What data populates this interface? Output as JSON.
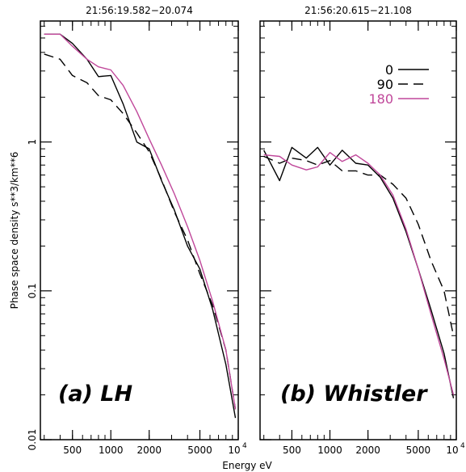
{
  "chart_data": [
    {
      "type": "line",
      "title": "21:56:19.582−20.074",
      "panel_label": "(a) LH",
      "xlabel": "Energy eV",
      "ylabel": "Phase space density s**3/km**6",
      "x_scale": "log",
      "y_scale": "log",
      "xlim": [
        280,
        10000
      ],
      "ylim": [
        0.01,
        6.5
      ],
      "x_ticks": [
        500,
        1000,
        2000,
        5000,
        10000
      ],
      "x_tick_labels": [
        "500",
        "1000",
        "2000",
        "5000",
        "10⁴"
      ],
      "y_ticks": [
        0.01,
        0.1,
        1
      ],
      "y_tick_labels": [
        "0.01",
        "0.1",
        "1"
      ],
      "series": [
        {
          "name": "0",
          "color": "#000000",
          "dash": "solid",
          "x": [
            300,
            400,
            500,
            650,
            800,
            1000,
            1250,
            1600,
            2000,
            2500,
            3150,
            4000,
            5000,
            6300,
            8000,
            9500
          ],
          "y": [
            5.3,
            5.3,
            4.6,
            3.6,
            2.75,
            2.8,
            1.8,
            1.0,
            0.9,
            0.55,
            0.35,
            0.2,
            0.14,
            0.075,
            0.032,
            0.014
          ]
        },
        {
          "name": "90",
          "color": "#000000",
          "dash": "dashed",
          "x": [
            300,
            400,
            500,
            650,
            800,
            1000,
            1250,
            1600,
            2000,
            2500,
            3150,
            4000,
            5000,
            6300,
            8000,
            9500
          ],
          "y": [
            3.9,
            3.6,
            2.8,
            2.5,
            2.05,
            1.92,
            1.55,
            1.15,
            0.86,
            0.56,
            0.34,
            0.22,
            0.13,
            0.08,
            0.04,
            0.016
          ]
        },
        {
          "name": "180",
          "color": "#c0479a",
          "dash": "solid",
          "x": [
            300,
            400,
            500,
            650,
            800,
            1000,
            1250,
            1600,
            2000,
            2500,
            3150,
            4000,
            5000,
            6300,
            8000,
            9500
          ],
          "y": [
            5.3,
            5.3,
            4.4,
            3.6,
            3.2,
            3.05,
            2.4,
            1.6,
            1.05,
            0.7,
            0.45,
            0.27,
            0.16,
            0.085,
            0.04,
            0.016
          ]
        }
      ]
    },
    {
      "type": "line",
      "title": "21:56:20.615−21.108",
      "panel_label": "(b) Whistler",
      "xlabel": "Energy eV",
      "x_scale": "log",
      "y_scale": "log",
      "xlim": [
        280,
        10000
      ],
      "ylim": [
        0.01,
        6.5
      ],
      "x_ticks": [
        500,
        1000,
        2000,
        5000,
        10000
      ],
      "x_tick_labels": [
        "500",
        "1000",
        "2000",
        "5000",
        "10⁴"
      ],
      "legend_position": "top-right",
      "legend_entries": [
        "0",
        "90",
        "180"
      ],
      "series": [
        {
          "name": "0",
          "color": "#000000",
          "dash": "solid",
          "x": [
            300,
            400,
            500,
            650,
            800,
            1000,
            1250,
            1600,
            2000,
            2500,
            3150,
            4000,
            5000,
            6300,
            8000,
            9500
          ],
          "y": [
            0.88,
            0.55,
            0.92,
            0.78,
            0.92,
            0.7,
            0.88,
            0.72,
            0.7,
            0.58,
            0.42,
            0.25,
            0.14,
            0.075,
            0.038,
            0.019
          ]
        },
        {
          "name": "90",
          "color": "#000000",
          "dash": "dashed",
          "x": [
            300,
            400,
            500,
            650,
            800,
            1000,
            1250,
            1600,
            2000,
            2500,
            3150,
            4000,
            5000,
            6300,
            8000,
            9500
          ],
          "y": [
            0.8,
            0.72,
            0.78,
            0.75,
            0.7,
            0.75,
            0.64,
            0.64,
            0.6,
            0.6,
            0.52,
            0.42,
            0.28,
            0.16,
            0.1,
            0.05
          ]
        },
        {
          "name": "180",
          "color": "#c0479a",
          "dash": "solid",
          "x": [
            300,
            400,
            500,
            650,
            800,
            1000,
            1250,
            1600,
            2000,
            2500,
            3150,
            4000,
            5000,
            6300,
            8000,
            9500
          ],
          "y": [
            0.82,
            0.8,
            0.7,
            0.65,
            0.68,
            0.85,
            0.74,
            0.82,
            0.72,
            0.6,
            0.44,
            0.26,
            0.14,
            0.07,
            0.035,
            0.02
          ]
        }
      ]
    }
  ]
}
